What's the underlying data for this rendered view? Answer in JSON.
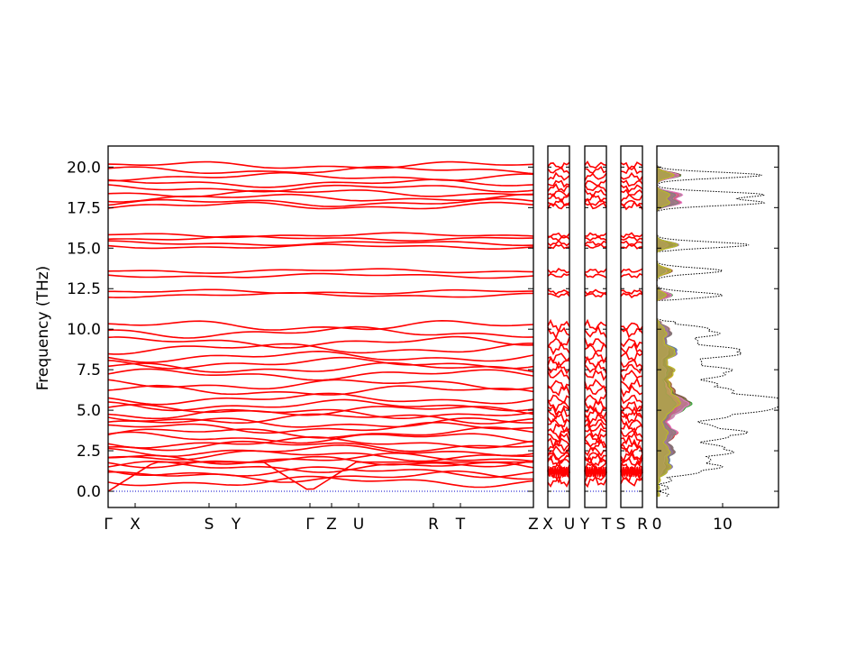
{
  "chart_data": {
    "type": "line",
    "ylabel": "Frequency (THz)",
    "ylim": [
      -1.0,
      21.3
    ],
    "yticks": [
      "0.0",
      "2.5",
      "5.0",
      "7.5",
      "10.0",
      "12.5",
      "15.0",
      "17.5",
      "20.0"
    ],
    "ytick_values": [
      0.0,
      2.5,
      5.0,
      7.5,
      10.0,
      12.5,
      15.0,
      17.5,
      20.0
    ],
    "colors": {
      "band": "#ff0000",
      "zero_line": "#0000cc",
      "dos_total": "#000000"
    },
    "band_panels": [
      {
        "segments": [
          {
            "from": "Γ",
            "to": "X"
          },
          {
            "from": "X",
            "to": "S"
          },
          {
            "from": "S",
            "to": "Y"
          },
          {
            "from": "Y",
            "to": "Γ"
          },
          {
            "from": "Γ",
            "to": "Z"
          },
          {
            "from": "Z",
            "to": "U"
          },
          {
            "from": "U",
            "to": "R"
          },
          {
            "from": "R",
            "to": "T"
          },
          {
            "from": "T",
            "to": "Z"
          }
        ],
        "tick_labels": [
          "Γ",
          "X",
          "S",
          "Y",
          "Γ",
          "Z",
          "U",
          "R",
          "T",
          "Z"
        ]
      },
      {
        "segments": [
          {
            "from": "X",
            "to": "U"
          }
        ],
        "tick_labels": [
          "X",
          "U"
        ]
      },
      {
        "segments": [
          {
            "from": "Y",
            "to": "T"
          }
        ],
        "tick_labels": [
          "Y",
          "T"
        ]
      },
      {
        "segments": [
          {
            "from": "S",
            "to": "R"
          }
        ],
        "tick_labels": [
          "S",
          "R"
        ]
      }
    ],
    "band_levels_thz": [
      0.0,
      0.6,
      0.9,
      1.2,
      1.5,
      1.8,
      2.0,
      2.2,
      2.5,
      2.8,
      3.0,
      3.3,
      3.6,
      3.9,
      4.2,
      4.5,
      4.8,
      5.0,
      5.3,
      5.7,
      6.2,
      6.6,
      7.2,
      7.6,
      7.9,
      8.3,
      8.8,
      9.2,
      9.8,
      10.2,
      12.1,
      12.3,
      13.3,
      13.6,
      15.1,
      15.3,
      15.6,
      15.8,
      17.6,
      17.8,
      18.1,
      18.4,
      18.7,
      19.0,
      19.4,
      19.8,
      20.1
    ],
    "dos": {
      "xlim": [
        0,
        18.5
      ],
      "xticks": [
        "0",
        "10"
      ],
      "xtick_values": [
        0,
        10
      ],
      "peaks_thz": [
        1.5,
        2.5,
        3.6,
        4.7,
        5.3,
        5.6,
        6.4,
        7.4,
        8.6,
        9.8,
        12.1,
        13.6,
        15.2,
        17.8,
        18.3,
        19.5
      ],
      "partial_colors": [
        "#1f77b4",
        "#ff7f0e",
        "#2ca02c",
        "#d62728",
        "#9467bd",
        "#8c564b",
        "#e377c2",
        "#7f7f7f",
        "#bcbd22"
      ]
    }
  }
}
